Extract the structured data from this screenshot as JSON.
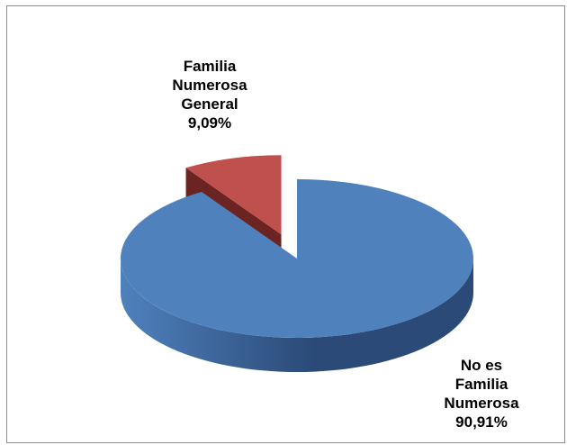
{
  "chart_data": {
    "type": "pie",
    "title": "",
    "style": "3d-exploded",
    "slices": [
      {
        "name": "No es Familia Numerosa",
        "label_lines": [
          "No es",
          "Familia",
          "Numerosa"
        ],
        "value": 90.91,
        "percent_label": "90,91%",
        "color": "#4f81bd",
        "side_color": "#2b4a77"
      },
      {
        "name": "Familia Numerosa General",
        "label_lines": [
          "Familia",
          "Numerosa",
          "General"
        ],
        "value": 9.09,
        "percent_label": "9,09%",
        "color": "#c0504d",
        "side_color": "#6b2422"
      }
    ]
  }
}
